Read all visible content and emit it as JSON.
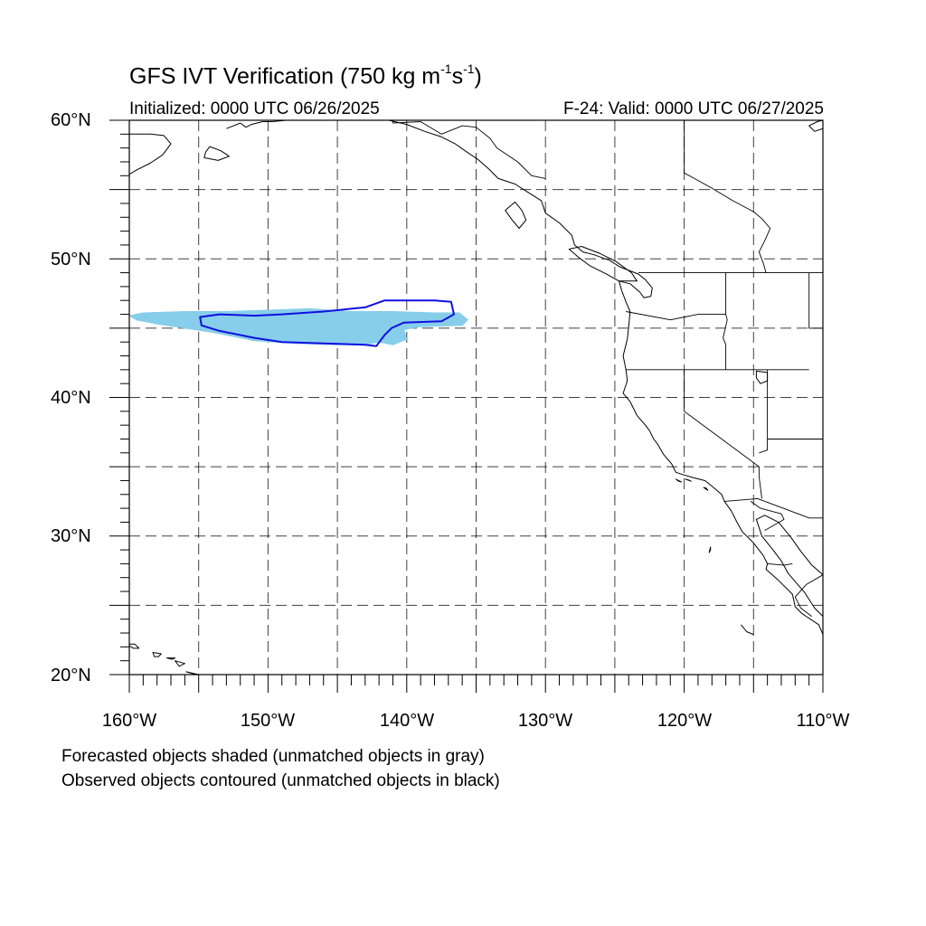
{
  "title": {
    "main": "GFS IVT Verification (750 kg m",
    "sup1": "-1",
    "mid": "s",
    "sup2": "-1",
    "end": ")"
  },
  "initialized": "Initialized: 0000 UTC 06/26/2025",
  "valid": "F-24: Valid: 0000 UTC 06/27/2025",
  "lat_labels": [
    "60°N",
    "50°N",
    "40°N",
    "30°N",
    "20°N"
  ],
  "lon_labels": [
    "160°W",
    "150°W",
    "140°W",
    "130°W",
    "120°W",
    "110°W"
  ],
  "notes": {
    "forecast": "Forecasted objects shaded (unmatched objects in gray)",
    "observed": "Observed objects contoured (unmatched objects in black)"
  },
  "map": {
    "extent": {
      "lon_min": -160,
      "lon_max": -110,
      "lat_min": 20,
      "lat_max": 60
    },
    "grid_interval_deg": 5,
    "colors": {
      "forecast_fill": "#87ceeb",
      "observed_contour": "#1010e0",
      "coastline": "#000000",
      "grid": "#000000"
    },
    "forecast_object": {
      "matched": true,
      "outline_lonlat": [
        [
          -160.0,
          45.9
        ],
        [
          -159.0,
          46.1
        ],
        [
          -156.0,
          46.2
        ],
        [
          -153.0,
          46.2
        ],
        [
          -150.0,
          46.3
        ],
        [
          -147.0,
          46.4
        ],
        [
          -144.0,
          46.2
        ],
        [
          -141.0,
          46.2
        ],
        [
          -138.0,
          46.1
        ],
        [
          -136.2,
          46.1
        ],
        [
          -135.6,
          45.6
        ],
        [
          -136.0,
          45.2
        ],
        [
          -139.0,
          45.1
        ],
        [
          -140.2,
          44.9
        ],
        [
          -140.0,
          44.2
        ],
        [
          -141.0,
          43.8
        ],
        [
          -142.0,
          44.0
        ],
        [
          -143.0,
          43.8
        ],
        [
          -145.0,
          43.8
        ],
        [
          -148.0,
          43.9
        ],
        [
          -151.0,
          44.1
        ],
        [
          -154.0,
          44.7
        ],
        [
          -156.0,
          45.0
        ],
        [
          -158.0,
          45.3
        ],
        [
          -159.5,
          45.6
        ]
      ]
    },
    "observed_object": {
      "matched": true,
      "outline_lonlat": [
        [
          -154.9,
          45.8
        ],
        [
          -153.5,
          46.0
        ],
        [
          -151.0,
          45.9
        ],
        [
          -149.0,
          46.0
        ],
        [
          -146.0,
          46.2
        ],
        [
          -143.0,
          46.5
        ],
        [
          -141.6,
          47.0
        ],
        [
          -138.0,
          47.0
        ],
        [
          -136.8,
          46.9
        ],
        [
          -136.6,
          46.0
        ],
        [
          -137.5,
          45.5
        ],
        [
          -140.2,
          45.4
        ],
        [
          -141.1,
          45.0
        ],
        [
          -141.6,
          44.5
        ],
        [
          -142.2,
          43.7
        ],
        [
          -143.0,
          43.8
        ],
        [
          -146.0,
          43.9
        ],
        [
          -149.0,
          44.0
        ],
        [
          -151.0,
          44.3
        ],
        [
          -153.5,
          44.8
        ],
        [
          -154.8,
          45.2
        ]
      ]
    },
    "coastline_lonlat": [
      [
        [
          -160.0,
          59.0
        ],
        [
          -158.5,
          59.0
        ],
        [
          -157.5,
          58.9
        ],
        [
          -157.0,
          58.3
        ],
        [
          -157.6,
          57.5
        ],
        [
          -158.5,
          56.9
        ],
        [
          -159.5,
          56.4
        ],
        [
          -160.0,
          56.1
        ]
      ],
      [
        [
          -154.2,
          58.1
        ],
        [
          -153.4,
          57.8
        ],
        [
          -152.8,
          57.4
        ],
        [
          -153.6,
          57.1
        ],
        [
          -154.6,
          57.3
        ],
        [
          -154.5,
          57.7
        ],
        [
          -154.2,
          58.1
        ]
      ],
      [
        [
          -153.0,
          59.4
        ],
        [
          -152.0,
          59.8
        ],
        [
          -151.6,
          59.5
        ],
        [
          -151.2,
          59.7
        ],
        [
          -150.4,
          59.9
        ],
        [
          -149.7,
          59.9
        ],
        [
          -148.7,
          60.0
        ]
      ],
      [
        [
          -145.0,
          60.0
        ],
        [
          -143.9,
          60.0
        ],
        [
          -141.3,
          60.0
        ],
        [
          -140.0,
          59.7
        ],
        [
          -138.7,
          59.2
        ],
        [
          -137.5,
          58.8
        ],
        [
          -136.5,
          58.3
        ],
        [
          -135.8,
          57.8
        ],
        [
          -134.9,
          57.2
        ],
        [
          -134.1,
          56.5
        ],
        [
          -133.4,
          55.8
        ],
        [
          -132.2,
          55.4
        ],
        [
          -131.1,
          54.7
        ],
        [
          -130.3,
          54.2
        ],
        [
          -130.0,
          53.3
        ],
        [
          -129.0,
          52.6
        ],
        [
          -128.1,
          51.7
        ],
        [
          -127.9,
          51.0
        ],
        [
          -127.3,
          50.5
        ],
        [
          -126.5,
          50.3
        ],
        [
          -125.4,
          49.9
        ],
        [
          -124.6,
          49.4
        ],
        [
          -123.3,
          48.9
        ],
        [
          -122.8,
          48.5
        ],
        [
          -122.3,
          47.9
        ],
        [
          -122.4,
          47.3
        ],
        [
          -122.9,
          47.2
        ],
        [
          -123.2,
          47.6
        ],
        [
          -123.9,
          48.2
        ],
        [
          -124.7,
          48.4
        ],
        [
          -124.5,
          47.7
        ],
        [
          -124.2,
          46.9
        ],
        [
          -123.9,
          46.2
        ],
        [
          -124.0,
          45.1
        ],
        [
          -124.1,
          44.2
        ],
        [
          -124.4,
          43.0
        ],
        [
          -124.2,
          42.0
        ],
        [
          -124.1,
          41.2
        ],
        [
          -124.4,
          40.3
        ],
        [
          -123.9,
          39.7
        ],
        [
          -123.4,
          38.7
        ],
        [
          -122.8,
          38.0
        ],
        [
          -122.5,
          37.6
        ],
        [
          -122.2,
          37.0
        ],
        [
          -121.9,
          36.6
        ],
        [
          -121.5,
          35.9
        ],
        [
          -120.9,
          35.2
        ],
        [
          -120.6,
          34.6
        ],
        [
          -120.0,
          34.4
        ],
        [
          -119.3,
          34.2
        ],
        [
          -118.5,
          34.0
        ],
        [
          -118.0,
          33.6
        ],
        [
          -117.3,
          33.0
        ],
        [
          -117.1,
          32.5
        ],
        [
          -116.6,
          31.8
        ],
        [
          -116.2,
          31.0
        ],
        [
          -115.8,
          30.3
        ],
        [
          -115.0,
          29.5
        ],
        [
          -114.3,
          28.6
        ],
        [
          -114.0,
          28.0
        ],
        [
          -114.1,
          27.6
        ],
        [
          -113.2,
          26.8
        ],
        [
          -112.2,
          25.8
        ],
        [
          -112.0,
          24.9
        ],
        [
          -111.5,
          24.4
        ],
        [
          -110.3,
          23.6
        ],
        [
          -110.0,
          22.9
        ]
      ],
      [
        [
          -110.0,
          24.2
        ],
        [
          -110.6,
          24.8
        ],
        [
          -111.3,
          25.9
        ],
        [
          -111.9,
          26.6
        ],
        [
          -112.5,
          27.3
        ],
        [
          -113.0,
          28.2
        ],
        [
          -113.6,
          29.0
        ],
        [
          -114.4,
          30.0
        ],
        [
          -114.8,
          31.2
        ],
        [
          -114.2,
          31.5
        ],
        [
          -113.2,
          31.0
        ],
        [
          -112.3,
          29.9
        ],
        [
          -111.6,
          28.9
        ],
        [
          -110.8,
          27.9
        ],
        [
          -110.0,
          27.2
        ]
      ],
      [
        [
          -115.9,
          23.6
        ],
        [
          -115.5,
          23.1
        ],
        [
          -115.0,
          22.9
        ]
      ],
      [
        [
          -110.0,
          59.4
        ],
        [
          -110.6,
          59.2
        ],
        [
          -111.0,
          59.6
        ],
        [
          -110.4,
          59.9
        ],
        [
          -110.0,
          60.0
        ]
      ]
    ],
    "islands_lonlat": [
      [
        [
          -124.7,
          48.4
        ],
        [
          -125.6,
          48.9
        ],
        [
          -126.8,
          49.5
        ],
        [
          -127.6,
          50.1
        ],
        [
          -128.3,
          50.7
        ],
        [
          -127.4,
          50.9
        ],
        [
          -126.1,
          50.4
        ],
        [
          -124.9,
          49.8
        ],
        [
          -123.8,
          49.0
        ],
        [
          -123.4,
          48.4
        ],
        [
          -124.7,
          48.4
        ]
      ],
      [
        [
          -132.2,
          54.1
        ],
        [
          -131.7,
          53.5
        ],
        [
          -131.4,
          52.8
        ],
        [
          -131.9,
          52.2
        ],
        [
          -132.4,
          52.8
        ],
        [
          -132.9,
          53.5
        ],
        [
          -132.2,
          54.1
        ]
      ],
      [
        [
          -120.6,
          34.1
        ],
        [
          -120.2,
          33.9
        ],
        [
          -120.4,
          33.95
        ],
        [
          -120.6,
          34.1
        ]
      ],
      [
        [
          -119.9,
          34.1
        ],
        [
          -119.5,
          33.95
        ],
        [
          -119.7,
          34.05
        ],
        [
          -119.9,
          34.1
        ]
      ],
      [
        [
          -118.6,
          33.5
        ],
        [
          -118.3,
          33.3
        ],
        [
          -118.4,
          33.45
        ],
        [
          -118.6,
          33.5
        ]
      ],
      [
        [
          -118.1,
          29.2
        ],
        [
          -118.2,
          28.8
        ],
        [
          -118.1,
          29.0
        ],
        [
          -118.1,
          29.2
        ]
      ],
      [
        [
          -160.2,
          22.2
        ],
        [
          -159.6,
          22.2
        ],
        [
          -159.3,
          21.9
        ],
        [
          -159.7,
          21.9
        ],
        [
          -160.2,
          22.2
        ]
      ],
      [
        [
          -158.3,
          21.6
        ],
        [
          -157.7,
          21.5
        ],
        [
          -157.9,
          21.3
        ],
        [
          -158.2,
          21.3
        ],
        [
          -158.3,
          21.6
        ]
      ],
      [
        [
          -157.3,
          21.2
        ],
        [
          -156.7,
          21.2
        ],
        [
          -156.9,
          21.1
        ],
        [
          -157.3,
          21.2
        ]
      ],
      [
        [
          -156.7,
          21.0
        ],
        [
          -156.0,
          20.8
        ],
        [
          -156.4,
          20.6
        ],
        [
          -156.7,
          21.0
        ]
      ],
      [
        [
          -155.9,
          20.2
        ],
        [
          -155.0,
          20.0
        ],
        [
          -155.2,
          20.0
        ],
        [
          -155.9,
          20.2
        ]
      ],
      [
        [
          -114.8,
          41.9
        ],
        [
          -114.0,
          41.8
        ],
        [
          -114.0,
          41.2
        ],
        [
          -114.5,
          41.0
        ],
        [
          -114.8,
          41.4
        ],
        [
          -114.8,
          41.9
        ]
      ]
    ],
    "land_lines_lonlat": [
      [
        [
          -141.0,
          60.0
        ],
        [
          -141.0,
          59.8
        ]
      ],
      [
        [
          -141.0,
          59.8
        ],
        [
          -139.0,
          59.9
        ],
        [
          -137.5,
          59.0
        ],
        [
          -136.0,
          59.6
        ],
        [
          -135.0,
          59.5
        ],
        [
          -134.0,
          58.7
        ],
        [
          -133.5,
          58.0
        ],
        [
          -132.0,
          57.0
        ],
        [
          -131.0,
          56.0
        ],
        [
          -130.0,
          55.8
        ]
      ],
      [
        [
          -120.0,
          60.0
        ],
        [
          -120.0,
          56.2
        ],
        [
          -118.0,
          55.1
        ],
        [
          -116.5,
          54.2
        ],
        [
          -115.0,
          53.4
        ],
        [
          -114.4,
          52.9
        ]
      ],
      [
        [
          -114.4,
          52.9
        ],
        [
          -113.8,
          52.2
        ],
        [
          -114.2,
          51.3
        ],
        [
          -114.6,
          50.5
        ],
        [
          -114.3,
          49.7
        ],
        [
          -114.1,
          49.0
        ]
      ],
      [
        [
          -123.3,
          49.0
        ],
        [
          -110.0,
          49.0
        ]
      ],
      [
        [
          -117.0,
          49.0
        ],
        [
          -117.0,
          46.0
        ],
        [
          -116.9,
          45.6
        ],
        [
          -117.2,
          44.3
        ],
        [
          -117.0,
          43.8
        ],
        [
          -117.0,
          42.0
        ]
      ],
      [
        [
          -124.2,
          46.2
        ],
        [
          -121.0,
          45.6
        ],
        [
          -119.0,
          46.0
        ],
        [
          -117.0,
          46.0
        ]
      ],
      [
        [
          -124.2,
          42.0
        ],
        [
          -111.0,
          42.0
        ]
      ],
      [
        [
          -111.0,
          49.0
        ],
        [
          -111.0,
          45.0
        ],
        [
          -110.0,
          45.0
        ]
      ],
      [
        [
          -120.0,
          42.0
        ],
        [
          -120.0,
          39.0
        ],
        [
          -114.6,
          35.0
        ],
        [
          -114.6,
          34.3
        ],
        [
          -114.4,
          32.7
        ]
      ],
      [
        [
          -114.0,
          42.0
        ],
        [
          -114.0,
          36.2
        ],
        [
          -114.6,
          36.0
        ]
      ],
      [
        [
          -114.0,
          37.0
        ],
        [
          -110.0,
          37.0
        ]
      ],
      [
        [
          -117.1,
          32.5
        ],
        [
          -114.7,
          32.7
        ],
        [
          -111.0,
          31.3
        ],
        [
          -110.0,
          31.3
        ]
      ],
      [
        [
          -115.2,
          32.5
        ],
        [
          -114.5,
          32.0
        ],
        [
          -113.0,
          31.6
        ],
        [
          -112.8,
          31.2
        ],
        [
          -114.2,
          30.4
        ]
      ],
      [
        [
          -114.0,
          28.0
        ],
        [
          -112.8,
          27.9
        ],
        [
          -112.2,
          28.0
        ]
      ],
      [
        [
          -110.0,
          27.2
        ],
        [
          -111.2,
          26.5
        ],
        [
          -112.0,
          25.6
        ],
        [
          -111.6,
          24.8
        ],
        [
          -110.8,
          24.2
        ]
      ]
    ]
  }
}
